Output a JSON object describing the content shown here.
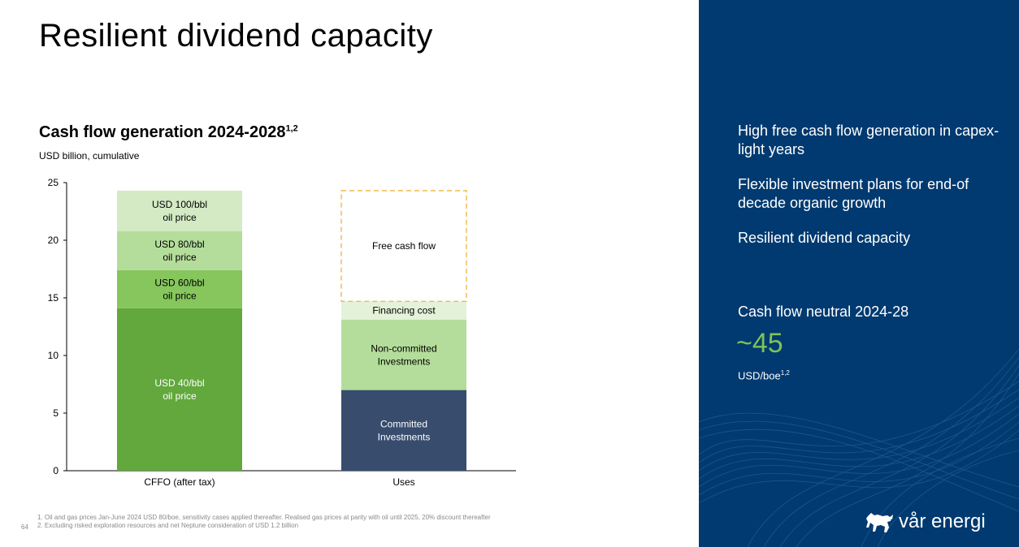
{
  "slide": {
    "title": "Resilient dividend capacity",
    "chart_title": "Cash flow generation 2024-2028",
    "chart_title_sup": "1,2",
    "chart_subtitle": "USD billion, cumulative",
    "footnotes": [
      "1.  Oil and gas prices Jan-June 2024 USD 80/boe, sensitivity cases applied thereafter. Realised gas prices at parity with oil until 2025,  20% discount thereafter",
      "2.  Excluding risked exploration resources and net Neptune consideration of USD 1.2 billion"
    ],
    "page_number": "64"
  },
  "panel": {
    "bullets": [
      "High free cash flow generation in capex-light years",
      "Flexible investment plans for end-of decade organic growth",
      "Resilient dividend capacity"
    ],
    "metric_label": "Cash flow neutral 2024-28",
    "metric_value": "~45",
    "metric_unit": "USD/boe",
    "metric_unit_sup": "1,2",
    "logo_text": "vår energi",
    "colors": {
      "background": "#003a70",
      "accent": "#7cc35b"
    }
  },
  "chart_data": {
    "type": "bar",
    "stacked": true,
    "categories": [
      "CFFO (after tax)",
      "Uses"
    ],
    "ylim": [
      0,
      25
    ],
    "yticks": [
      0,
      5,
      10,
      15,
      20,
      25
    ],
    "xlabel": "",
    "ylabel": "",
    "stacks": [
      {
        "category": "CFFO (after tax)",
        "segments": [
          {
            "label": [
              "USD 40/bbl",
              "oil price"
            ],
            "value": 14.1,
            "color": "#62a83d",
            "text_color": "#ffffff"
          },
          {
            "label": [
              "USD 60/bbl",
              "oil price"
            ],
            "value": 3.3,
            "color": "#86c65d",
            "text_color": "#000000"
          },
          {
            "label": [
              "USD 80/bbl",
              "oil price"
            ],
            "value": 3.4,
            "color": "#b4dd9b",
            "text_color": "#000000"
          },
          {
            "label": [
              "USD 100/bbl",
              "oil price"
            ],
            "value": 3.5,
            "color": "#d3eac4",
            "text_color": "#000000"
          }
        ]
      },
      {
        "category": "Uses",
        "segments": [
          {
            "label": [
              "Committed",
              "Investments"
            ],
            "value": 7.0,
            "color": "#384c6e",
            "text_color": "#ffffff"
          },
          {
            "label": [
              "Non-committed",
              "Investments"
            ],
            "value": 6.1,
            "color": "#b4dd9b",
            "text_color": "#000000"
          },
          {
            "label": [
              "Financing cost"
            ],
            "value": 1.6,
            "color": "#e3f2d8",
            "text_color": "#000000"
          },
          {
            "label": [
              "Free cash flow"
            ],
            "value": 9.6,
            "color": "none",
            "text_color": "#000000",
            "border": "dashed",
            "border_color": "#f0b43c"
          }
        ]
      }
    ]
  }
}
